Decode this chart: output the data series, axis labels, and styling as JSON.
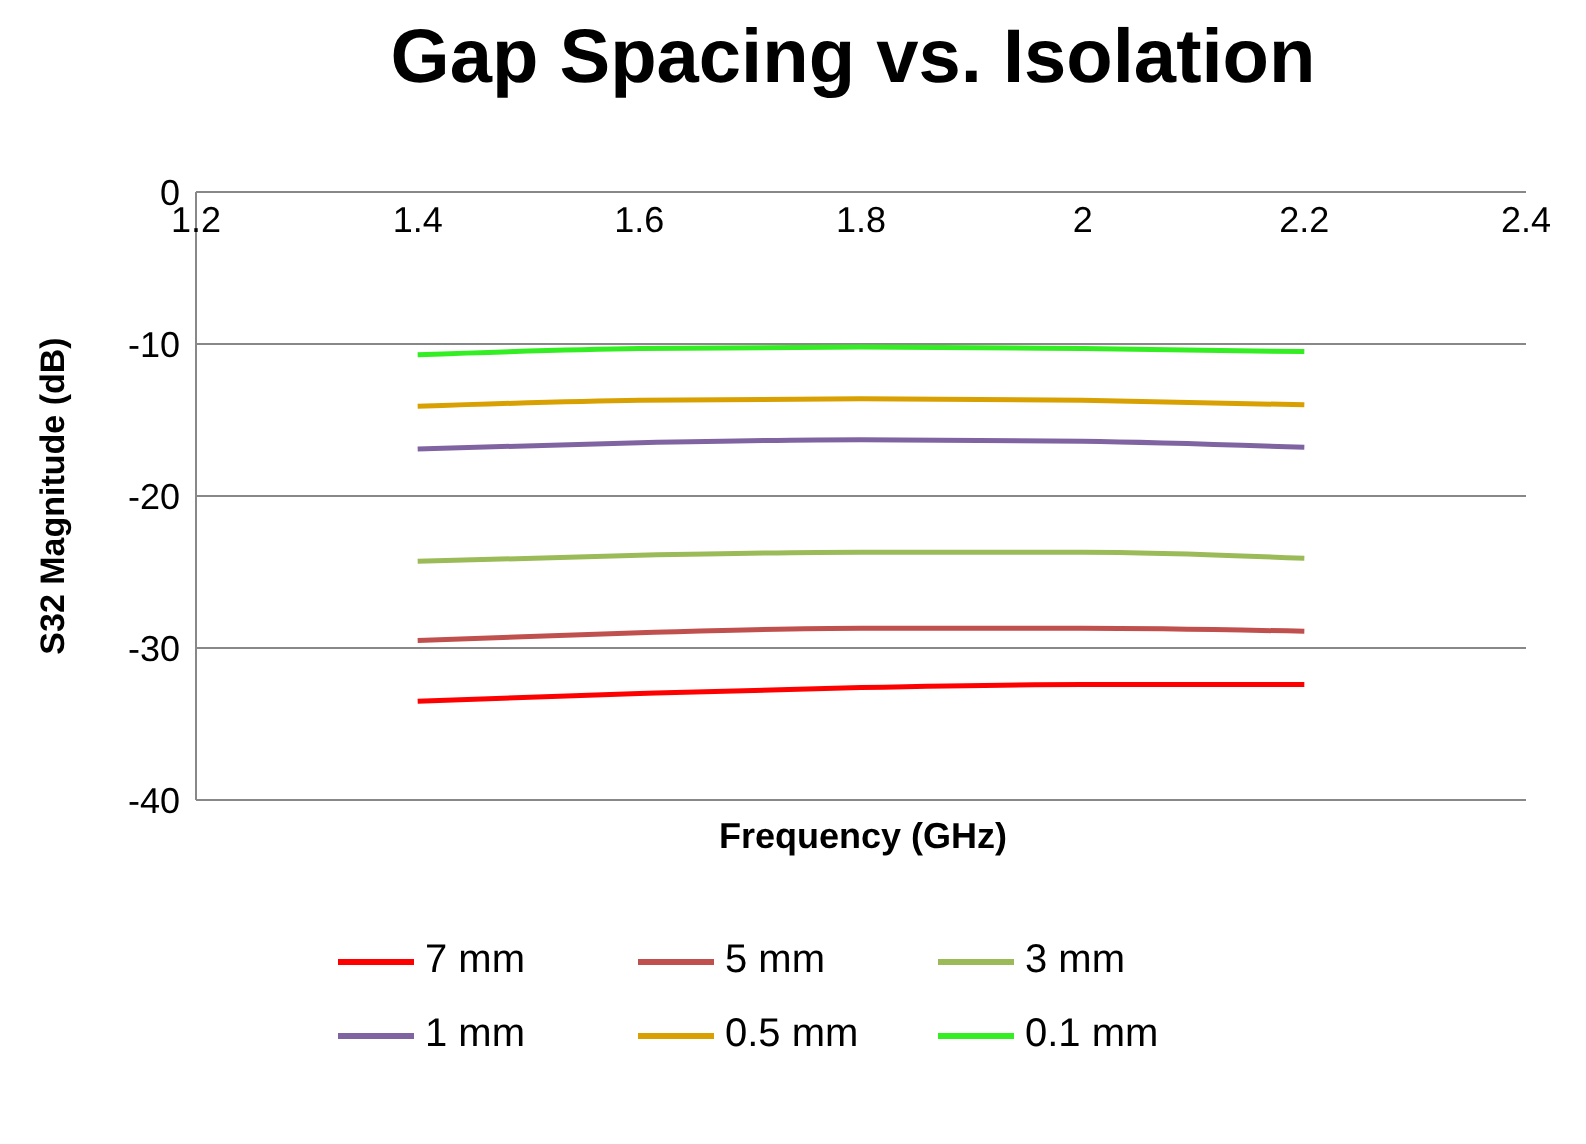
{
  "chart_data": {
    "type": "line",
    "title": "Gap Spacing vs. Isolation",
    "xlabel": "Frequency (GHz)",
    "ylabel": "S32 Magnitude (dB)",
    "x": [
      1.4,
      1.6,
      1.8,
      2.0,
      2.2
    ],
    "xlim": [
      1.2,
      2.4
    ],
    "xticks": [
      1.2,
      1.4,
      1.6,
      1.8,
      2,
      2.2,
      2.4
    ],
    "ylim": [
      -40,
      0
    ],
    "yticks": [
      -40,
      -30,
      -20,
      -10,
      0
    ],
    "grid": "y",
    "legend": "bottom",
    "marker": "none",
    "line_style": "solid",
    "series": [
      {
        "name": "7 mm",
        "color": "#ff0000",
        "values": [
          -33.5,
          -33.0,
          -32.6,
          -32.4,
          -32.4
        ]
      },
      {
        "name": "5 mm",
        "color": "#c0504d",
        "values": [
          -29.5,
          -29.0,
          -28.7,
          -28.7,
          -28.9
        ]
      },
      {
        "name": "3 mm",
        "color": "#9bbb59",
        "values": [
          -24.3,
          -23.9,
          -23.7,
          -23.7,
          -24.1
        ]
      },
      {
        "name": "1 mm",
        "color": "#8064a2",
        "values": [
          -16.9,
          -16.5,
          -16.3,
          -16.4,
          -16.8
        ]
      },
      {
        "name": "0.5 mm",
        "color": "#d8a000",
        "values": [
          -14.1,
          -13.7,
          -13.6,
          -13.7,
          -14.0
        ]
      },
      {
        "name": "0.1 mm",
        "color": "#33ee22",
        "values": [
          -10.7,
          -10.3,
          -10.2,
          -10.3,
          -10.5
        ]
      }
    ]
  }
}
